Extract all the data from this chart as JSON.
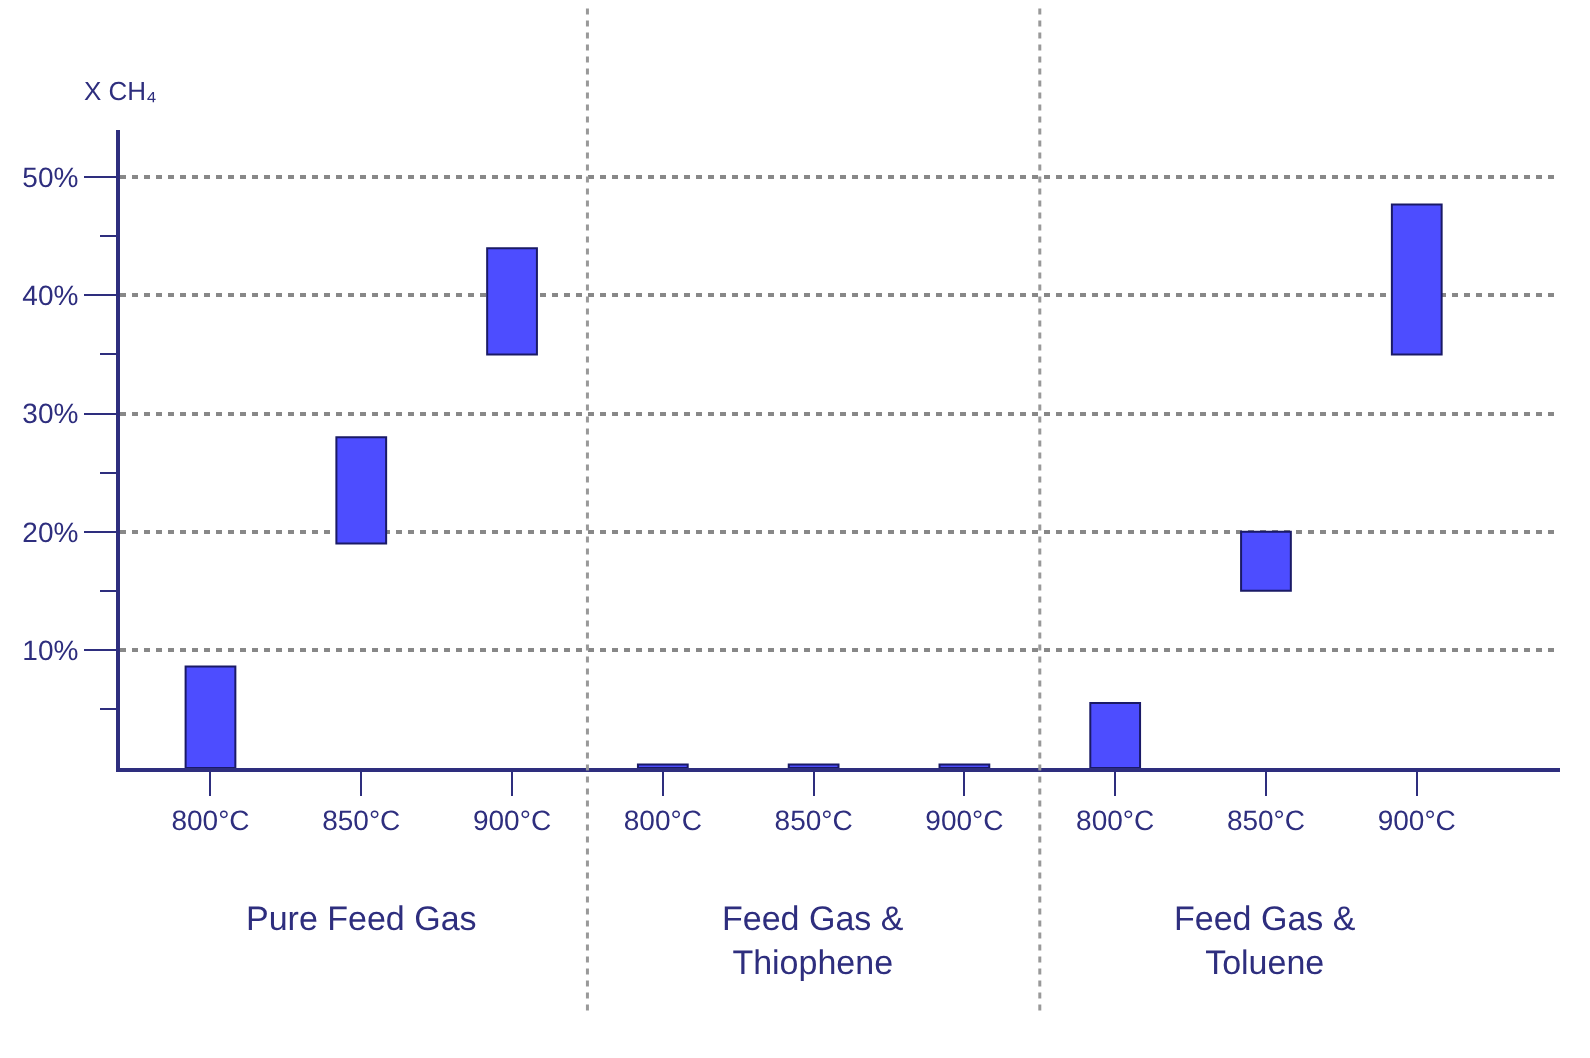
{
  "chart_data": {
    "type": "bar",
    "ylabel": "X CH₄",
    "categories": [
      "800°C",
      "850°C",
      "900°C",
      "800°C",
      "850°C",
      "900°C",
      "800°C",
      "850°C",
      "900°C"
    ],
    "base": [
      0,
      19,
      35,
      0,
      0,
      0,
      0,
      15,
      35
    ],
    "values": [
      8.6,
      9,
      9,
      0.3,
      0.3,
      0.3,
      5.5,
      5,
      12.7
    ],
    "color": "#4d4dff",
    "ylim": [
      0,
      54
    ],
    "yticks": [
      {
        "value": 5,
        "label": null
      },
      {
        "value": 10,
        "label": "10%"
      },
      {
        "value": 15,
        "label": null
      },
      {
        "value": 20,
        "label": "20%"
      },
      {
        "value": 25,
        "label": null
      },
      {
        "value": 30,
        "label": "30%"
      },
      {
        "value": 35,
        "label": null
      },
      {
        "value": 40,
        "label": "40%"
      },
      {
        "value": 45,
        "label": null
      },
      {
        "value": 50,
        "label": "50%"
      }
    ],
    "grid": "y",
    "annotations": [
      "Pure Feed Gas",
      "Feed Gas &\nThiophene",
      "Feed Gas &\nToluene"
    ]
  }
}
